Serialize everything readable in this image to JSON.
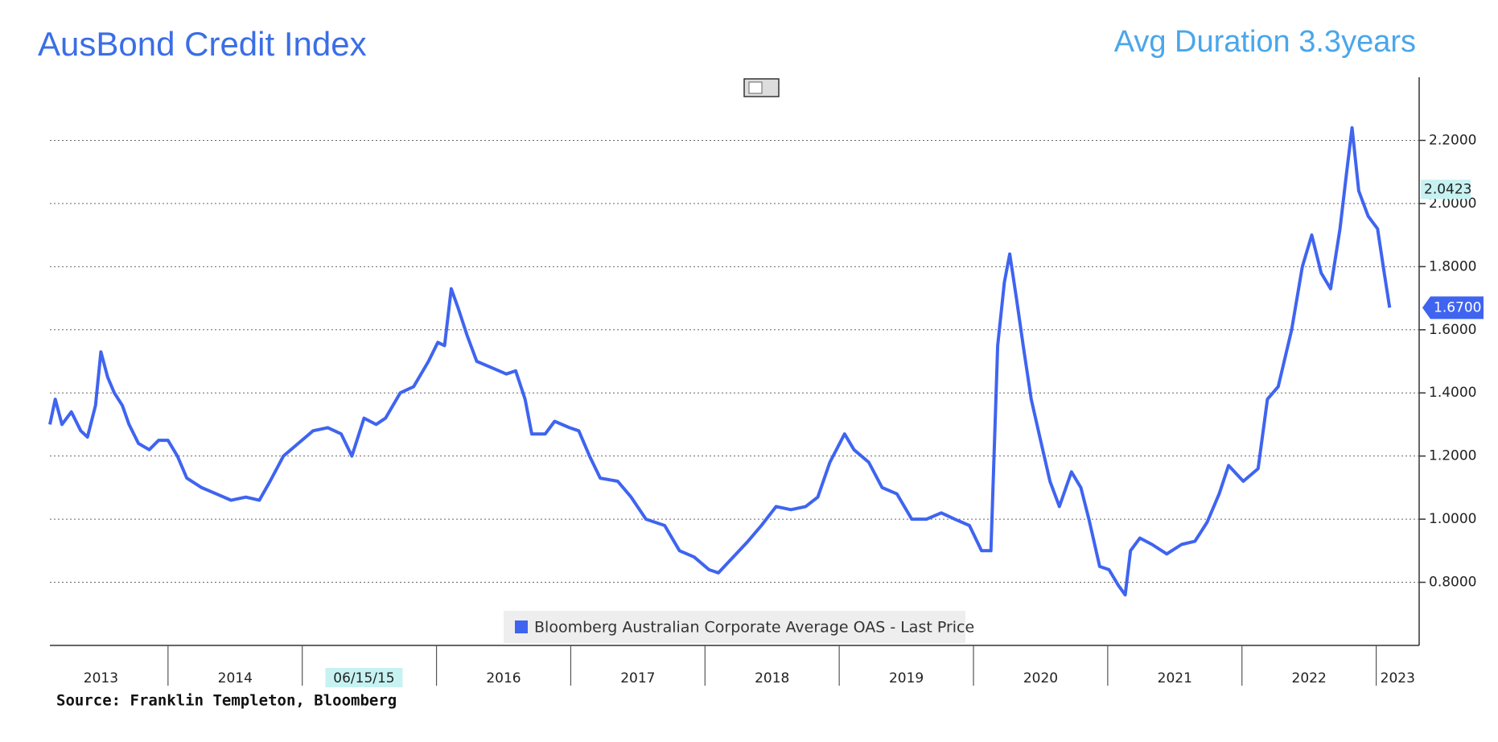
{
  "chart_data": {
    "type": "line",
    "title": "AusBond Credit Index",
    "subtitle": "Avg Duration 3.3years",
    "source": "Source: Franklin Templeton, Bloomberg",
    "x": [
      2013.12,
      2013.16,
      2013.21,
      2013.28,
      2013.35,
      2013.4,
      2013.46,
      2013.5,
      2013.55,
      2013.6,
      2013.66,
      2013.71,
      2013.78,
      2013.86,
      2013.93,
      2014.0,
      2014.07,
      2014.14,
      2014.25,
      2014.36,
      2014.47,
      2014.58,
      2014.68,
      2014.76,
      2014.86,
      2014.97,
      2015.08,
      2015.19,
      2015.29,
      2015.37,
      2015.46,
      2015.55,
      2015.62,
      2015.73,
      2015.83,
      2015.94,
      2016.01,
      2016.06,
      2016.11,
      2016.16,
      2016.23,
      2016.3,
      2016.41,
      2016.52,
      2016.59,
      2016.66,
      2016.71,
      2016.81,
      2016.88,
      2016.99,
      2017.06,
      2017.14,
      2017.22,
      2017.35,
      2017.45,
      2017.56,
      2017.7,
      2017.81,
      2017.92,
      2018.03,
      2018.1,
      2018.21,
      2018.32,
      2018.42,
      2018.53,
      2018.64,
      2018.75,
      2018.84,
      2018.93,
      2019.04,
      2019.11,
      2019.22,
      2019.32,
      2019.43,
      2019.54,
      2019.65,
      2019.76,
      2019.86,
      2019.97,
      2020.06,
      2020.13,
      2020.18,
      2020.23,
      2020.27,
      2020.32,
      2020.37,
      2020.43,
      2020.5,
      2020.57,
      2020.64,
      2020.73,
      2020.8,
      2020.86,
      2020.94,
      2021.01,
      2021.08,
      2021.13,
      2021.17,
      2021.24,
      2021.33,
      2021.44,
      2021.55,
      2021.65,
      2021.74,
      2021.83,
      2021.9,
      2022.01,
      2022.12,
      2022.19,
      2022.27,
      2022.37,
      2022.45,
      2022.52,
      2022.59,
      2022.66,
      2022.73,
      2022.78,
      2022.82,
      2022.87,
      2022.94,
      2023.01,
      2023.06,
      2023.1
    ],
    "series": [
      {
        "name": "Bloomberg Australian Corporate Average OAS - Last Price",
        "color": "#3f64f0",
        "values": [
          1.3,
          1.38,
          1.3,
          1.34,
          1.28,
          1.26,
          1.36,
          1.53,
          1.45,
          1.4,
          1.36,
          1.3,
          1.24,
          1.22,
          1.25,
          1.25,
          1.2,
          1.13,
          1.1,
          1.08,
          1.06,
          1.07,
          1.06,
          1.12,
          1.2,
          1.24,
          1.28,
          1.29,
          1.27,
          1.2,
          1.32,
          1.3,
          1.32,
          1.4,
          1.42,
          1.5,
          1.56,
          1.55,
          1.73,
          1.67,
          1.58,
          1.5,
          1.48,
          1.46,
          1.47,
          1.38,
          1.27,
          1.27,
          1.31,
          1.29,
          1.28,
          1.2,
          1.13,
          1.12,
          1.07,
          1.0,
          0.98,
          0.9,
          0.88,
          0.84,
          0.83,
          0.88,
          0.93,
          0.98,
          1.04,
          1.03,
          1.04,
          1.07,
          1.18,
          1.27,
          1.22,
          1.18,
          1.1,
          1.08,
          1.0,
          1.0,
          1.02,
          1.0,
          0.98,
          0.9,
          0.9,
          1.55,
          1.75,
          1.84,
          1.7,
          1.55,
          1.38,
          1.25,
          1.12,
          1.04,
          1.15,
          1.1,
          1.0,
          0.85,
          0.84,
          0.79,
          0.76,
          0.9,
          0.94,
          0.92,
          0.89,
          0.92,
          0.93,
          0.99,
          1.08,
          1.17,
          1.12,
          1.16,
          1.38,
          1.42,
          1.6,
          1.8,
          1.9,
          1.78,
          1.73,
          1.92,
          2.1,
          2.24,
          2.04,
          1.96,
          1.92,
          1.78,
          1.67
        ]
      }
    ],
    "xlim": [
      2013.12,
      2023.32
    ],
    "xticks": [
      {
        "value": 2013.5,
        "label": "2013"
      },
      {
        "value": 2014.5,
        "label": "2014"
      },
      {
        "value": 2015.46,
        "label": "06/15/15",
        "highlight": true
      },
      {
        "value": 2016.5,
        "label": "2016"
      },
      {
        "value": 2017.5,
        "label": "2017"
      },
      {
        "value": 2018.5,
        "label": "2018"
      },
      {
        "value": 2019.5,
        "label": "2019"
      },
      {
        "value": 2020.5,
        "label": "2020"
      },
      {
        "value": 2021.5,
        "label": "2021"
      },
      {
        "value": 2022.5,
        "label": "2022"
      },
      {
        "value": 2023.16,
        "label": "2023"
      }
    ],
    "ylim": [
      0.6,
      2.4
    ],
    "yticks": [
      {
        "value": 0.8,
        "label": "0.8000"
      },
      {
        "value": 1.0,
        "label": "1.0000"
      },
      {
        "value": 1.2,
        "label": "1.2000"
      },
      {
        "value": 1.4,
        "label": "1.4000"
      },
      {
        "value": 1.6,
        "label": "1.6000"
      },
      {
        "value": 1.8,
        "label": "1.8000"
      },
      {
        "value": 2.0,
        "label": "2.0000"
      },
      {
        "value": 2.2,
        "label": "2.2000"
      }
    ],
    "grid": true,
    "cursor_value": {
      "value": 2.0423,
      "label": "2.0423"
    },
    "last_value": {
      "value": 1.67,
      "label": "1.6700"
    }
  }
}
